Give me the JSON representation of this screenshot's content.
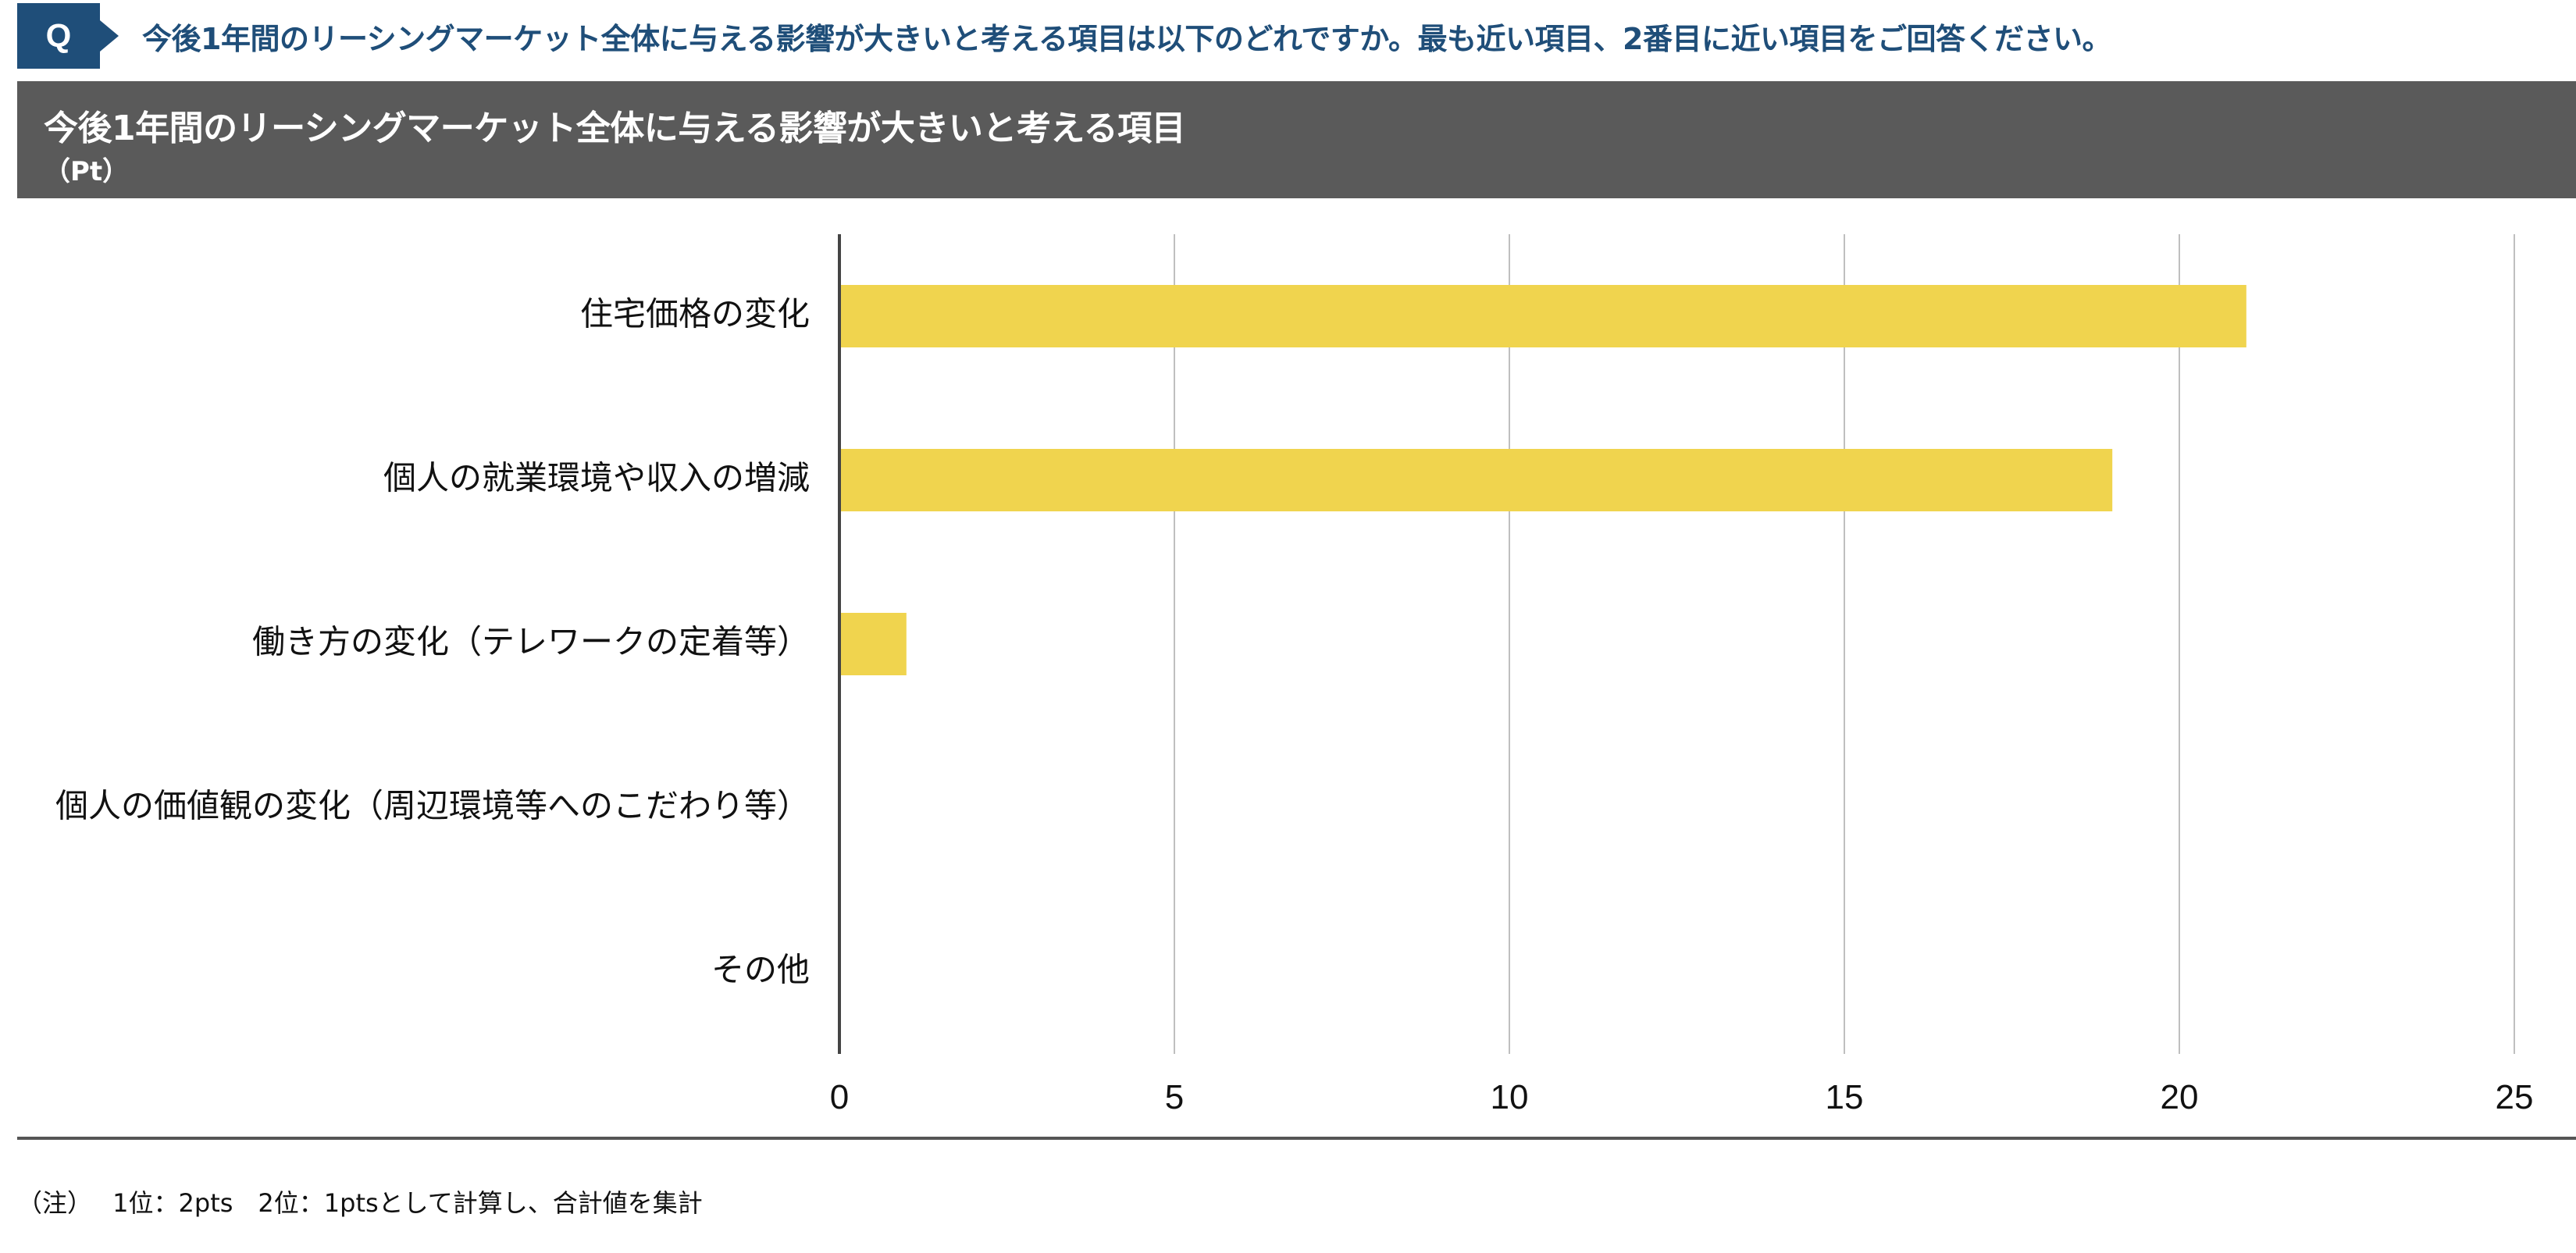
{
  "question": {
    "badge": "Q",
    "text": "今後1年間のリーシングマーケット全体に与える影響が大きいと考える項目は以下のどれですか。最も近い項目、2番目に近い項目をご回答ください。"
  },
  "colors": {
    "question_accent": "#1f4e79",
    "header_bg": "#5a5a5a",
    "bar": "#f0d44e",
    "grid": "#bfbfbf",
    "axis": "#444444"
  },
  "chart_data": {
    "type": "bar",
    "orientation": "horizontal",
    "title": "今後1年間のリーシングマーケット全体に与える影響が大きいと考える項目",
    "unit": "（Pt）",
    "categories": [
      "住宅価格の変化",
      "個人の就業環境や収入の増減",
      "働き方の変化（テレワークの定着等）",
      "個人の価値観の変化（周辺環境等へのこだわり等）",
      "その他"
    ],
    "values": [
      21,
      19,
      1,
      0,
      0
    ],
    "xlim": [
      0,
      25
    ],
    "xticks": [
      0,
      5,
      10,
      15,
      20,
      25
    ],
    "grid": true,
    "legend": "none"
  },
  "footnote": "（注）　 1位：2pts　2位：1ptsとして計算し、合計値を集計"
}
